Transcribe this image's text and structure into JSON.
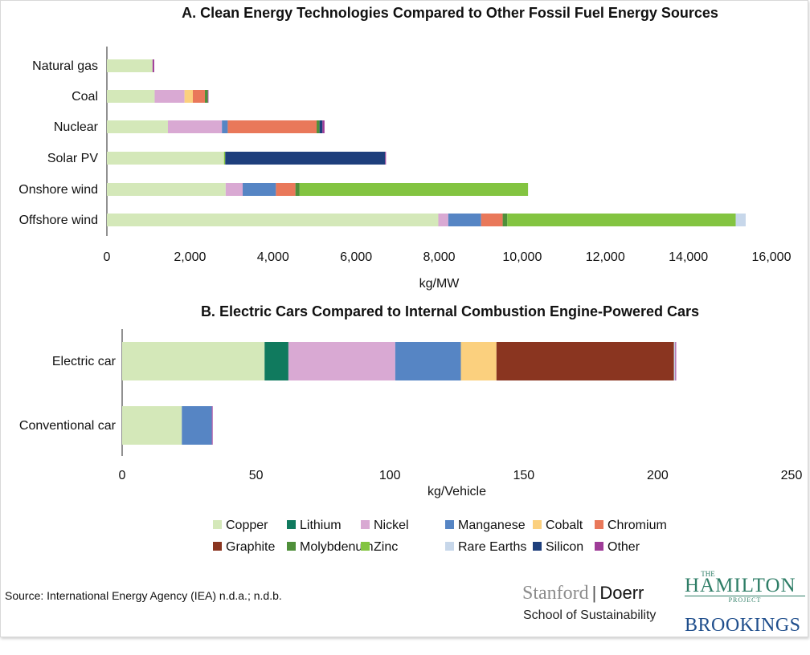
{
  "colors": {
    "Copper": "#d4e8b9",
    "Lithium": "#107a5e",
    "Nickel": "#d9a9d3",
    "Manganese": "#5685c4",
    "Cobalt": "#fbd07e",
    "Chromium": "#e9785a",
    "Graphite": "#8a3520",
    "Molybdenum": "#4f8f3a",
    "Zinc": "#83c441",
    "Rare Earths": "#c7d7ea",
    "Silicon": "#1e3f7c",
    "Other": "#9f3c98"
  },
  "chart_data": [
    {
      "type": "bar",
      "orientation": "horizontal",
      "stacked": true,
      "title": "A. Clean Energy Technologies Compared to Other Fossil Fuel Energy Sources",
      "xlabel": "kg/MW",
      "xlim": [
        0,
        16000
      ],
      "xticks": [
        0,
        2000,
        4000,
        6000,
        8000,
        10000,
        12000,
        14000,
        16000
      ],
      "xtick_labels": [
        "0",
        "2,000",
        "4,000",
        "6,000",
        "8,000",
        "10,000",
        "12,000",
        "14,000",
        "16,000"
      ],
      "categories": [
        "Natural gas",
        "Coal",
        "Nuclear",
        "Solar PV",
        "Onshore wind",
        "Offshore wind"
      ],
      "series": [
        {
          "name": "Copper",
          "values": [
            1100,
            1150,
            1470,
            2820,
            2860,
            7980
          ]
        },
        {
          "name": "Lithium",
          "values": [
            0,
            0,
            0,
            0,
            0,
            0
          ]
        },
        {
          "name": "Nickel",
          "values": [
            0,
            720,
            1300,
            0,
            410,
            240
          ]
        },
        {
          "name": "Manganese",
          "values": [
            0,
            0,
            140,
            0,
            800,
            790
          ]
        },
        {
          "name": "Cobalt",
          "values": [
            0,
            200,
            0,
            0,
            0,
            0
          ]
        },
        {
          "name": "Chromium",
          "values": [
            0,
            290,
            2140,
            0,
            470,
            520
          ]
        },
        {
          "name": "Graphite",
          "values": [
            0,
            0,
            0,
            0,
            0,
            0
          ]
        },
        {
          "name": "Molybdenum",
          "values": [
            0,
            70,
            70,
            0,
            100,
            110
          ]
        },
        {
          "name": "Zinc",
          "values": [
            0,
            0,
            0,
            30,
            5500,
            5500
          ]
        },
        {
          "name": "Rare Earths",
          "values": [
            0,
            0,
            0,
            0,
            0,
            240
          ]
        },
        {
          "name": "Silicon",
          "values": [
            0,
            0,
            70,
            3850,
            0,
            0
          ]
        },
        {
          "name": "Other",
          "values": [
            40,
            10,
            50,
            20,
            0,
            0
          ]
        }
      ]
    },
    {
      "type": "bar",
      "orientation": "horizontal",
      "stacked": true,
      "title": "B. Electric Cars Compared to Internal Combustion Engine-Powered Cars",
      "xlabel": "kg/Vehicle",
      "xlim": [
        0,
        250
      ],
      "xticks": [
        0,
        50,
        100,
        150,
        200,
        250
      ],
      "xtick_labels": [
        "0",
        "50",
        "100",
        "150",
        "200",
        "250"
      ],
      "categories": [
        "Electric car",
        "Conventional car"
      ],
      "series": [
        {
          "name": "Copper",
          "values": [
            53.2,
            22.3
          ]
        },
        {
          "name": "Lithium",
          "values": [
            8.9,
            0
          ]
        },
        {
          "name": "Nickel",
          "values": [
            39.9,
            0
          ]
        },
        {
          "name": "Manganese",
          "values": [
            24.5,
            11.2
          ]
        },
        {
          "name": "Cobalt",
          "values": [
            13.3,
            0
          ]
        },
        {
          "name": "Chromium",
          "values": [
            0,
            0
          ]
        },
        {
          "name": "Graphite",
          "values": [
            66.3,
            0
          ]
        },
        {
          "name": "Molybdenum",
          "values": [
            0,
            0
          ]
        },
        {
          "name": "Zinc",
          "values": [
            0,
            0
          ]
        },
        {
          "name": "Rare Earths",
          "values": [
            0.5,
            0
          ]
        },
        {
          "name": "Silicon",
          "values": [
            0,
            0
          ]
        },
        {
          "name": "Other",
          "values": [
            0.3,
            0.3
          ]
        }
      ]
    }
  ],
  "legend": {
    "rows": [
      [
        "Copper",
        "Lithium",
        "Nickel",
        "Manganese",
        "Cobalt",
        "Chromium"
      ],
      [
        "Graphite",
        "Molybdenum",
        "Zinc",
        "Rare Earths",
        "Silicon",
        "Other"
      ]
    ]
  },
  "footer": {
    "source": "Source: International Energy Agency (IEA) n.d.a.; n.d.b.",
    "stanford": "Stanford",
    "separator": "|",
    "doerr": "Doerr",
    "school": "School of Sustainability",
    "hamilton_the": "THE",
    "hamilton": "HAMILTON",
    "hamilton_project": "PROJECT",
    "brookings": "BROOKINGS"
  }
}
